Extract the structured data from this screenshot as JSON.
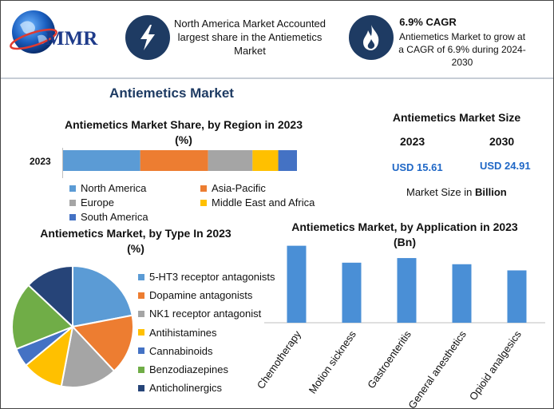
{
  "header": {
    "logo_text": "MMR",
    "box1_text": "North America Market Accounted largest share in the Antiemetics Market",
    "box2_title": "6.9% CAGR",
    "box2_text": "Antiemetics Market to grow at a CAGR of 6.9% during 2024-2030",
    "icon1": "lightning-icon",
    "icon2": "flame-icon"
  },
  "main_title": "Antiemetics Market",
  "market_size": {
    "title": "Antiemetics Market Size",
    "year1": "2023",
    "year2": "2030",
    "value1": "USD 15.61",
    "value2": "USD 24.91",
    "note_prefix": "Market Size in",
    "note_unit": "Billion"
  },
  "colors": {
    "blue": "#5b9bd5",
    "orange": "#ed7d31",
    "gray": "#a5a5a5",
    "yellow": "#ffc000",
    "darkblue": "#4472c4",
    "green": "#70ad47",
    "navy": "#264478",
    "bar": "#4a8fd6",
    "accent": "#1f67c6"
  },
  "chart_data": [
    {
      "type": "bar",
      "orientation": "horizontal-stacked",
      "title": "Antiemetics Market Share, by Region in 2023 (%)",
      "categories": [
        "2023"
      ],
      "series": [
        {
          "name": "North America",
          "values": [
            33
          ]
        },
        {
          "name": "Asia-Pacific",
          "values": [
            29
          ]
        },
        {
          "name": "Europe",
          "values": [
            19
          ]
        },
        {
          "name": "Middle East and Africa",
          "values": [
            11
          ]
        },
        {
          "name": "South America",
          "values": [
            8
          ]
        }
      ],
      "legend": "bottom"
    },
    {
      "type": "pie",
      "title": "Antiemetics Market, by Type In 2023 (%)",
      "labels": [
        "5-HT3 receptor antagonists",
        "Dopamine antagonists",
        "NK1 receptor antagonist",
        "Antihistamines",
        "Cannabinoids",
        "Benzodiazepines",
        "Anticholinergics"
      ],
      "values": [
        22,
        16,
        15,
        11,
        5,
        18,
        13
      ],
      "legend": "right"
    },
    {
      "type": "bar",
      "title": "Antiemetics Market, by Application in 2023 (Bn)",
      "categories": [
        "Chemotherapy",
        "Motion sickness",
        "Gastroenteritis",
        "General anesthetics",
        "Opioid analgesics"
      ],
      "values": [
        5.0,
        3.9,
        4.2,
        3.8,
        3.4
      ],
      "ylim": [
        0,
        5.5
      ],
      "legend": "none"
    }
  ]
}
